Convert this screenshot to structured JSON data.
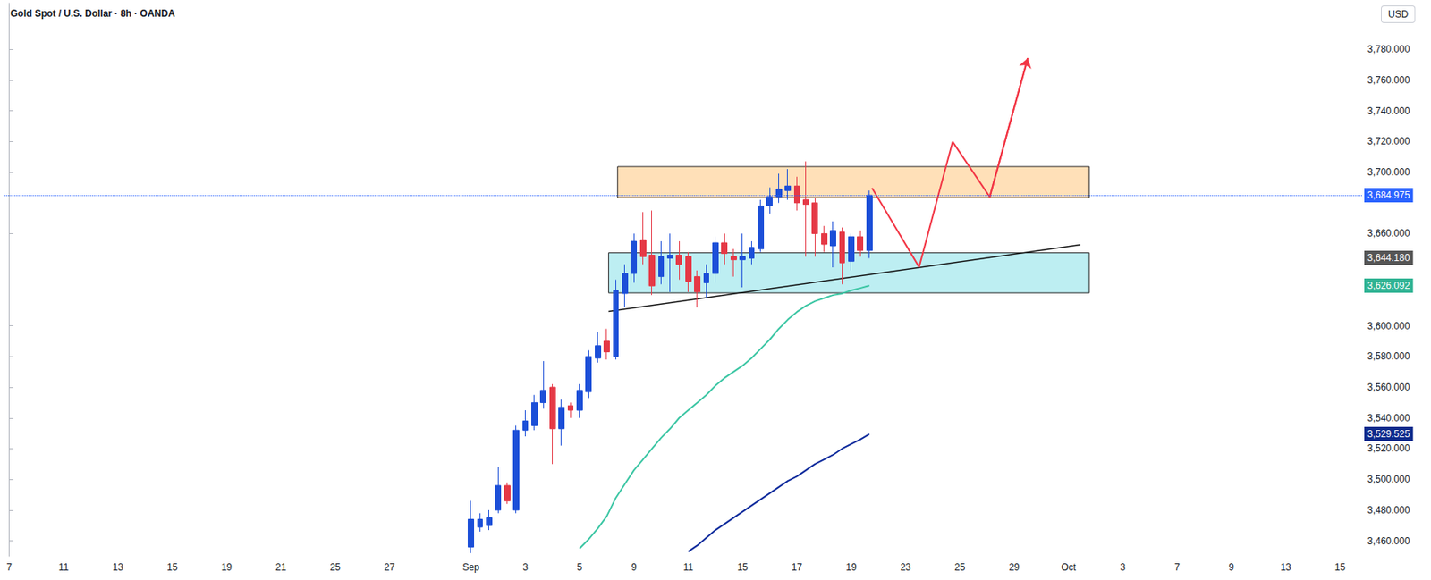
{
  "chart_data": {
    "type": "candlestick",
    "title": "Gold Spot / U.S. Dollar · 8h · OANDA",
    "currency": "USD",
    "categories": [
      "7",
      null,
      null,
      null,
      null,
      null,
      "11",
      null,
      null,
      null,
      null,
      null,
      "13",
      null,
      null,
      null,
      null,
      null,
      "15",
      null,
      null,
      null,
      null,
      null,
      "19",
      null,
      null,
      null,
      null,
      null,
      "21",
      null,
      null,
      null,
      null,
      null,
      "25",
      null,
      null,
      null,
      null,
      null,
      "27",
      null,
      null,
      null,
      null,
      null,
      null,
      null,
      null,
      "Sep",
      null,
      null,
      null,
      null,
      null,
      "3",
      null,
      null,
      null,
      null,
      null,
      "5",
      null,
      null,
      null,
      null,
      null,
      "9",
      null,
      null,
      null,
      null,
      null,
      "11",
      null,
      null,
      null,
      null,
      null,
      "15",
      null,
      null,
      null,
      null,
      null,
      "17",
      null,
      null,
      null,
      null,
      null,
      "19",
      null,
      null,
      null,
      null,
      null,
      "23",
      null,
      null,
      null,
      null,
      null,
      "25",
      null,
      null,
      null,
      null,
      null,
      "29",
      null,
      null,
      null,
      null,
      null,
      "Oct",
      null,
      null,
      null,
      null,
      null,
      "3",
      null,
      null,
      null,
      null,
      null,
      "7",
      null,
      null,
      null,
      null,
      null,
      "9",
      null,
      null,
      null,
      null,
      null,
      "13",
      null,
      null,
      null,
      null,
      null,
      "15",
      null,
      null
    ],
    "series": [
      {
        "type": "candlestick",
        "color": {
          "up": "#1c4fd8",
          "down": "#e53946"
        },
        "values": [
          null,
          null,
          null,
          null,
          null,
          null,
          null,
          null,
          null,
          null,
          null,
          null,
          null,
          null,
          null,
          null,
          null,
          null,
          null,
          null,
          null,
          null,
          null,
          null,
          null,
          null,
          null,
          null,
          null,
          null,
          null,
          null,
          null,
          null,
          null,
          null,
          null,
          null,
          null,
          null,
          null,
          null,
          null,
          null,
          null,
          null,
          null,
          null,
          null,
          null,
          null,
          {
            "open": 3456,
            "high": 3486,
            "low": 3452,
            "close": 3474
          },
          {
            "open": 3469,
            "high": 3478,
            "low": 3466,
            "close": 3474
          },
          {
            "open": 3470,
            "high": 3480,
            "low": 3467,
            "close": 3475
          },
          {
            "open": 3480,
            "high": 3508,
            "low": 3478,
            "close": 3496
          },
          {
            "open": 3496,
            "high": 3498,
            "low": 3484,
            "close": 3486
          },
          {
            "open": 3480,
            "high": 3535,
            "low": 3478,
            "close": 3532
          },
          {
            "open": 3532,
            "high": 3545,
            "low": 3528,
            "close": 3538
          },
          {
            "open": 3535,
            "high": 3555,
            "low": 3532,
            "close": 3550
          },
          {
            "open": 3550,
            "high": 3577,
            "low": 3546,
            "close": 3558
          },
          {
            "open": 3560,
            "high": 3562,
            "low": 3510,
            "close": 3533
          },
          {
            "open": 3533,
            "high": 3552,
            "low": 3522,
            "close": 3547
          },
          {
            "open": 3548,
            "high": 3550,
            "low": 3540,
            "close": 3545
          },
          {
            "open": 3545,
            "high": 3562,
            "low": 3540,
            "close": 3558
          },
          {
            "open": 3557,
            "high": 3584,
            "low": 3553,
            "close": 3580
          },
          {
            "open": 3579,
            "high": 3596,
            "low": 3576,
            "close": 3587
          },
          {
            "open": 3590,
            "high": 3598,
            "low": 3578,
            "close": 3583
          },
          {
            "open": 3580,
            "high": 3630,
            "low": 3578,
            "close": 3623
          },
          {
            "open": 3621,
            "high": 3640,
            "low": 3612,
            "close": 3634
          },
          {
            "open": 3634,
            "high": 3660,
            "low": 3628,
            "close": 3655
          },
          {
            "open": 3656,
            "high": 3674,
            "low": 3640,
            "close": 3645
          },
          {
            "open": 3646,
            "high": 3675,
            "low": 3620,
            "close": 3626
          },
          {
            "open": 3632,
            "high": 3655,
            "low": 3627,
            "close": 3645
          },
          {
            "open": 3644,
            "high": 3660,
            "low": 3622,
            "close": 3646
          },
          {
            "open": 3646,
            "high": 3655,
            "low": 3630,
            "close": 3640
          },
          {
            "open": 3645,
            "high": 3648,
            "low": 3622,
            "close": 3629
          },
          {
            "open": 3632,
            "high": 3636,
            "low": 3612,
            "close": 3622
          },
          {
            "open": 3628,
            "high": 3640,
            "low": 3618,
            "close": 3634
          },
          {
            "open": 3634,
            "high": 3658,
            "low": 3628,
            "close": 3654
          },
          {
            "open": 3654,
            "high": 3660,
            "low": 3640,
            "close": 3647
          },
          {
            "open": 3645,
            "high": 3650,
            "low": 3632,
            "close": 3643
          },
          {
            "open": 3643,
            "high": 3660,
            "low": 3625,
            "close": 3645
          },
          {
            "open": 3644,
            "high": 3655,
            "low": 3640,
            "close": 3651
          },
          {
            "open": 3650,
            "high": 3682,
            "low": 3648,
            "close": 3678
          },
          {
            "open": 3678,
            "high": 3690,
            "low": 3673,
            "close": 3684
          },
          {
            "open": 3684,
            "high": 3699,
            "low": 3680,
            "close": 3689
          },
          {
            "open": 3688,
            "high": 3702,
            "low": 3682,
            "close": 3691
          },
          {
            "open": 3691,
            "high": 3697,
            "low": 3675,
            "close": 3680
          },
          {
            "open": 3682,
            "high": 3707,
            "low": 3645,
            "close": 3679
          },
          {
            "open": 3680,
            "high": 3683,
            "low": 3645,
            "close": 3660
          },
          {
            "open": 3660,
            "high": 3665,
            "low": 3648,
            "close": 3653
          },
          {
            "open": 3652,
            "high": 3668,
            "low": 3638,
            "close": 3662
          },
          {
            "open": 3661,
            "high": 3664,
            "low": 3627,
            "close": 3641
          },
          {
            "open": 3642,
            "high": 3660,
            "low": 3636,
            "close": 3658
          },
          {
            "open": 3658,
            "high": 3662,
            "low": 3645,
            "close": 3649
          },
          {
            "open": 3649,
            "high": 3688,
            "low": 3644,
            "close": 3684.975
          },
          null,
          null,
          null,
          null,
          null,
          null,
          null,
          null,
          null,
          null,
          null,
          null,
          null,
          null,
          null,
          null,
          null,
          null,
          null,
          null,
          null,
          null,
          null,
          null,
          null,
          null,
          null,
          null,
          null,
          null,
          null,
          null,
          null,
          null,
          null,
          null,
          null,
          null,
          null,
          null,
          null,
          null,
          null,
          null,
          null,
          null,
          null,
          null,
          null,
          null,
          null,
          null,
          null,
          null
        ]
      },
      {
        "type": "line",
        "color": "#3cc6a4",
        "values": [
          null,
          null,
          null,
          null,
          null,
          null,
          null,
          null,
          null,
          null,
          null,
          null,
          null,
          null,
          null,
          null,
          null,
          null,
          null,
          null,
          null,
          null,
          null,
          null,
          null,
          null,
          null,
          null,
          null,
          null,
          null,
          null,
          null,
          null,
          null,
          null,
          null,
          null,
          null,
          null,
          null,
          null,
          null,
          null,
          null,
          null,
          null,
          null,
          null,
          null,
          null,
          null,
          null,
          null,
          null,
          null,
          null,
          null,
          null,
          null,
          null,
          null,
          null,
          3455,
          3461,
          3468,
          3476,
          3488,
          3497,
          3506,
          3513,
          3520,
          3527,
          3533,
          3540,
          3545,
          3550,
          3555,
          3561,
          3566,
          3570,
          3574,
          3579,
          3585,
          3591,
          3598,
          3604,
          3609,
          3613,
          3616,
          3618,
          3620,
          3621,
          3623,
          3624.5,
          3626.092,
          null,
          null,
          null,
          null,
          null,
          null,
          null,
          null,
          null,
          null,
          null,
          null,
          null,
          null,
          null,
          null,
          null,
          null,
          null,
          null,
          null,
          null,
          null,
          null,
          null,
          null,
          null,
          null,
          null,
          null,
          null,
          null,
          null,
          null,
          null,
          null,
          null,
          null,
          null,
          null,
          null,
          null,
          null,
          null,
          null,
          null,
          null,
          null,
          null,
          null,
          null,
          null,
          null,
          null
        ]
      },
      {
        "type": "line",
        "color": "#0d2a9c",
        "values": [
          null,
          null,
          null,
          null,
          null,
          null,
          null,
          null,
          null,
          null,
          null,
          null,
          null,
          null,
          null,
          null,
          null,
          null,
          null,
          null,
          null,
          null,
          null,
          null,
          null,
          null,
          null,
          null,
          null,
          null,
          null,
          null,
          null,
          null,
          null,
          null,
          null,
          null,
          null,
          null,
          null,
          null,
          null,
          null,
          null,
          null,
          null,
          null,
          null,
          null,
          null,
          null,
          null,
          null,
          null,
          null,
          null,
          null,
          null,
          null,
          null,
          null,
          null,
          null,
          null,
          null,
          null,
          null,
          null,
          null,
          null,
          null,
          null,
          null,
          null,
          3453,
          3457,
          3462,
          3467,
          3471,
          3475,
          3479,
          3483,
          3487,
          3491,
          3495,
          3499,
          3502,
          3506,
          3510,
          3513,
          3516,
          3520,
          3523,
          3526,
          3529.525,
          null,
          null,
          null,
          null,
          null,
          null,
          null,
          null,
          null,
          null,
          null,
          null,
          null,
          null,
          null,
          null,
          null,
          null,
          null,
          null,
          null,
          null,
          null,
          null,
          null,
          null,
          null,
          null,
          null,
          null,
          null,
          null,
          null,
          null,
          null,
          null,
          null,
          null,
          null,
          null,
          null,
          null,
          null,
          null,
          null,
          null,
          null,
          null,
          null,
          null,
          null,
          null,
          null,
          null
        ]
      }
    ],
    "ylim": [
      3450,
      3810
    ],
    "yticks": [
      {
        "value": 3460,
        "label": "3,460.000"
      },
      {
        "value": 3480,
        "label": "3,480.000"
      },
      {
        "value": 3500,
        "label": "3,500.000"
      },
      {
        "value": 3520,
        "label": "3,520.000"
      },
      {
        "value": 3540,
        "label": "3,540.000"
      },
      {
        "value": 3560,
        "label": "3,560.000"
      },
      {
        "value": 3580,
        "label": "3,580.000"
      },
      {
        "value": 3600,
        "label": "3,600.000"
      },
      {
        "value": 3660,
        "label": "3,660.000"
      },
      {
        "value": 3700,
        "label": "3,700.000"
      },
      {
        "value": 3720,
        "label": "3,720.000"
      },
      {
        "value": 3740,
        "label": "3,740.000"
      },
      {
        "value": 3760,
        "label": "3,760.000"
      },
      {
        "value": 3780,
        "label": "3,780.000"
      }
    ],
    "grid": false,
    "price_labels": [
      {
        "value": 3684.975,
        "label": "3,684.975",
        "color": "#2962ff",
        "line_style": "dotted"
      },
      {
        "value": 3644.18,
        "label": "3,644.180",
        "color": "#555555"
      },
      {
        "value": 3626.092,
        "label": "3,626.092",
        "color": "#2fb393"
      },
      {
        "value": 3529.525,
        "label": "3,529.525",
        "color": "#0d2a8c"
      }
    ],
    "zones": [
      {
        "x": [
          67.2,
          119.3
        ],
        "y": [
          3683.4,
          3703.6
        ],
        "color": "#ffe0b8"
      },
      {
        "x": [
          66.2,
          119.3
        ],
        "y": [
          3621.4,
          3647.5
        ],
        "color": "#bdeef2"
      }
    ],
    "trendline": {
      "x": [
        66.2,
        118.3
      ],
      "y": [
        3609.3,
        3652.7
      ],
      "color": "#111111"
    },
    "projection": {
      "x": [
        95.3,
        100.5,
        104.2,
        108.3,
        112.5
      ],
      "y": [
        3689.7,
        3638.2,
        3719.8,
        3683.9,
        3774.2
      ],
      "color": "#f23645",
      "marker": "arrow"
    }
  }
}
